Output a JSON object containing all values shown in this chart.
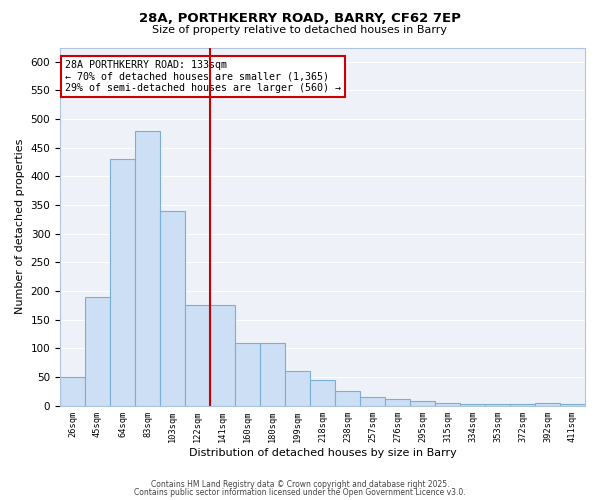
{
  "title1": "28A, PORTHKERRY ROAD, BARRY, CF62 7EP",
  "title2": "Size of property relative to detached houses in Barry",
  "xlabel": "Distribution of detached houses by size in Barry",
  "ylabel": "Number of detached properties",
  "bar_labels": [
    "26sqm",
    "45sqm",
    "64sqm",
    "83sqm",
    "103sqm",
    "122sqm",
    "141sqm",
    "160sqm",
    "180sqm",
    "199sqm",
    "218sqm",
    "238sqm",
    "257sqm",
    "276sqm",
    "295sqm",
    "315sqm",
    "334sqm",
    "353sqm",
    "372sqm",
    "392sqm",
    "411sqm"
  ],
  "bar_heights": [
    50,
    190,
    430,
    480,
    340,
    175,
    175,
    110,
    110,
    60,
    45,
    25,
    15,
    12,
    8,
    5,
    3,
    2,
    2,
    5,
    2
  ],
  "bar_color": "#ccdff5",
  "bar_edge_color": "#7aafd4",
  "vline_x": 5.5,
  "vline_color": "#cc0000",
  "annotation_title": "28A PORTHKERRY ROAD: 133sqm",
  "annotation_line1": "← 70% of detached houses are smaller (1,365)",
  "annotation_line2": "29% of semi-detached houses are larger (560) →",
  "annotation_box_color": "#ffffff",
  "annotation_box_edge": "#cc0000",
  "footer1": "Contains HM Land Registry data © Crown copyright and database right 2025.",
  "footer2": "Contains public sector information licensed under the Open Government Licence v3.0.",
  "ylim": [
    0,
    625
  ],
  "yticks": [
    0,
    50,
    100,
    150,
    200,
    250,
    300,
    350,
    400,
    450,
    500,
    550,
    600
  ],
  "background_color": "#ffffff",
  "plot_bg_color": "#eef2f8",
  "grid_color": "#ffffff"
}
